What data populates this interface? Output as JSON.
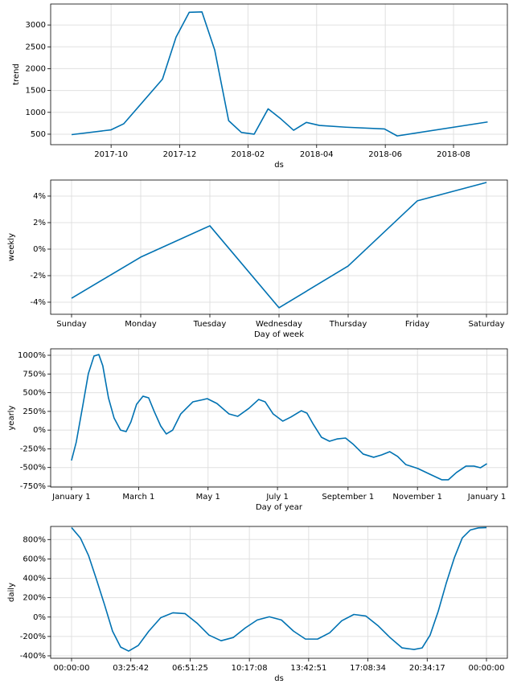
{
  "chart_data": [
    {
      "type": "line",
      "xlabel": "ds",
      "ylabel": "trend",
      "color": "#0072B2",
      "grid": true,
      "x": [
        2017.654,
        2017.75,
        2017.781,
        2017.875,
        2017.908,
        2017.94,
        2017.971,
        2018.002,
        2018.036,
        2018.067,
        2018.098,
        2018.132,
        2018.163,
        2018.194,
        2018.225,
        2018.257,
        2018.321,
        2018.415,
        2018.446,
        2018.666
      ],
      "values": [
        490,
        600,
        740,
        1760,
        2720,
        3290,
        3300,
        2430,
        810,
        540,
        500,
        1080,
        850,
        590,
        770,
        700,
        660,
        620,
        460,
        780
      ],
      "xlim": [
        2017.603,
        2018.714
      ],
      "ylim": [
        260,
        3480
      ],
      "xticks": [
        {
          "value": 2017.75,
          "label": "2017-10"
        },
        {
          "value": 2017.917,
          "label": "2017-12"
        },
        {
          "value": 2018.083,
          "label": "2018-02"
        },
        {
          "value": 2018.25,
          "label": "2018-04"
        },
        {
          "value": 2018.417,
          "label": "2018-06"
        },
        {
          "value": 2018.583,
          "label": "2018-08"
        }
      ],
      "yticks": [
        500,
        1000,
        1500,
        2000,
        2500,
        3000
      ]
    },
    {
      "type": "line",
      "xlabel": "Day of week",
      "ylabel": "weekly",
      "color": "#0072B2",
      "grid": true,
      "categories": [
        "Sunday",
        "Monday",
        "Tuesday",
        "Wednesday",
        "Thursday",
        "Friday",
        "Saturday"
      ],
      "values": [
        -3.7,
        -0.6,
        1.76,
        -4.42,
        -1.27,
        3.64,
        5.03
      ],
      "ylim": [
        -4.91,
        5.21
      ],
      "yticks": [
        {
          "value": -4,
          "label": "-4%"
        },
        {
          "value": -2,
          "label": "-2%"
        },
        {
          "value": 0,
          "label": "0%"
        },
        {
          "value": 2,
          "label": "2%"
        },
        {
          "value": 4,
          "label": "4%"
        }
      ]
    },
    {
      "type": "line",
      "xlabel": "Day of year",
      "ylabel": "yearly",
      "color": "#0072B2",
      "grid": true,
      "x": [
        0,
        4.2,
        9.9,
        14.8,
        19.8,
        24,
        27.5,
        32.5,
        37.4,
        43.1,
        48,
        52.2,
        57.2,
        62.8,
        67.8,
        72.7,
        78.4,
        83.3,
        88.9,
        96,
        106.6,
        119.3,
        127.8,
        138.4,
        146.1,
        156,
        164.5,
        170.2,
        177.2,
        185.7,
        192.7,
        201.9,
        206.9,
        212.5,
        219.6,
        226.7,
        233.7,
        240.8,
        247.8,
        256.3,
        265.5,
        272.5,
        279.6,
        286.6,
        293.7,
        304.3,
        314.9,
        325.5,
        331.1,
        338.2,
        346.6,
        353.7,
        359.4,
        365
      ],
      "values": [
        -406,
        -160,
        324,
        753,
        990,
        1010,
        860,
        431,
        163,
        0,
        -20,
        109,
        345,
        453,
        431,
        249,
        55,
        -52,
        0,
        216,
        377,
        420,
        356,
        216,
        184,
        292,
        410,
        377,
        216,
        120,
        174,
        259,
        227,
        77,
        -95,
        -149,
        -117,
        -106,
        -192,
        -320,
        -363,
        -331,
        -288,
        -352,
        -460,
        -513,
        -589,
        -664,
        -664,
        -567,
        -481,
        -481,
        -503,
        -449
      ],
      "xlim": [
        -18.3,
        383
      ],
      "ylim": [
        -761,
        1086
      ],
      "xticks": [
        {
          "value": 0,
          "label": "January 1"
        },
        {
          "value": 59,
          "label": "March 1"
        },
        {
          "value": 120,
          "label": "May 1"
        },
        {
          "value": 181,
          "label": "July 1"
        },
        {
          "value": 243,
          "label": "September 1"
        },
        {
          "value": 304,
          "label": "November 1"
        },
        {
          "value": 365,
          "label": "January 1"
        }
      ],
      "yticks": [
        {
          "value": -750,
          "label": "-750%"
        },
        {
          "value": -500,
          "label": "-500%"
        },
        {
          "value": -250,
          "label": "-250%"
        },
        {
          "value": 0,
          "label": "0%"
        },
        {
          "value": 250,
          "label": "250%"
        },
        {
          "value": 500,
          "label": "500%"
        },
        {
          "value": 750,
          "label": "750%"
        },
        {
          "value": 1000,
          "label": "1000%"
        }
      ]
    },
    {
      "type": "line",
      "xlabel": "ds",
      "ylabel": "daily",
      "color": "#0072B2",
      "grid": true,
      "x": [
        0,
        0.51,
        0.98,
        1.44,
        1.91,
        2.37,
        2.84,
        3.3,
        3.86,
        4.47,
        5.16,
        5.86,
        6.56,
        7.26,
        7.95,
        8.65,
        9.35,
        10.05,
        10.74,
        11.44,
        12.14,
        12.84,
        13.53,
        14.23,
        14.93,
        15.63,
        16.33,
        17.02,
        17.72,
        18.42,
        19.12,
        19.81,
        20.28,
        20.74,
        21.21,
        21.67,
        22.14,
        22.6,
        23.07,
        23.53,
        24
      ],
      "values": [
        923,
        816,
        636,
        389,
        126,
        -145,
        -310,
        -351,
        -293,
        -145,
        -6,
        44,
        36,
        -63,
        -186,
        -244,
        -211,
        -112,
        -30,
        3,
        -30,
        -145,
        -227,
        -227,
        -162,
        -38,
        27,
        11,
        -88,
        -211,
        -318,
        -334,
        -318,
        -186,
        60,
        348,
        611,
        816,
        899,
        920,
        923
      ],
      "xlim": [
        -1.209,
        25.209
      ],
      "ylim": [
        -425,
        935
      ],
      "xticks": [
        {
          "value": 0,
          "label": "00:00:00"
        },
        {
          "value": 3.4286,
          "label": "03:25:42"
        },
        {
          "value": 6.8571,
          "label": "06:51:25"
        },
        {
          "value": 10.2857,
          "label": "10:17:08"
        },
        {
          "value": 13.7143,
          "label": "13:42:51"
        },
        {
          "value": 17.1429,
          "label": "17:08:34"
        },
        {
          "value": 20.5714,
          "label": "20:34:17"
        },
        {
          "value": 24,
          "label": "00:00:00"
        }
      ],
      "yticks": [
        {
          "value": -400,
          "label": "-400%"
        },
        {
          "value": -200,
          "label": "-200%"
        },
        {
          "value": 0,
          "label": "0%"
        },
        {
          "value": 200,
          "label": "200%"
        },
        {
          "value": 400,
          "label": "400%"
        },
        {
          "value": 600,
          "label": "600%"
        },
        {
          "value": 800,
          "label": "800%"
        }
      ]
    }
  ]
}
